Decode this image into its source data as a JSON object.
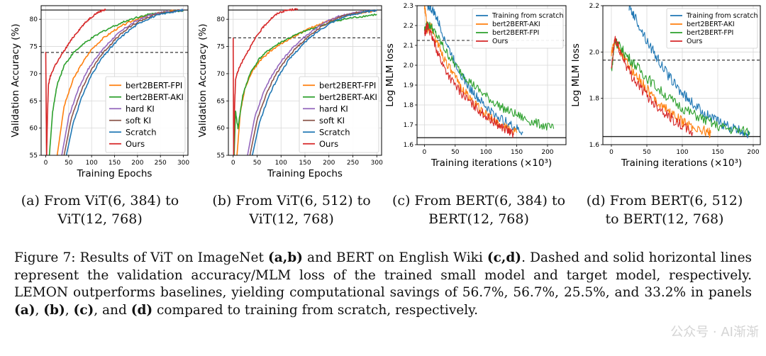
{
  "chart_data": [
    {
      "type": "line",
      "ylabel": "Validation Accuracy (%)",
      "xlabel": "Training Epochs",
      "xlim": [
        -10,
        310
      ],
      "ylim": [
        55,
        82.5
      ],
      "xticks": [
        0,
        50,
        100,
        150,
        200,
        250,
        300
      ],
      "yticks": [
        55,
        60,
        65,
        70,
        75,
        80
      ],
      "hlines": {
        "solid": 81.7,
        "dashed": 73.9
      },
      "legend_position": "lower-right",
      "series": [
        {
          "name": "bert2BERT-FPI",
          "color": "#ff7f0e",
          "x": [
            25,
            40,
            60,
            80,
            100,
            125,
            150,
            175,
            200,
            225,
            250,
            275,
            300
          ],
          "y": [
            55,
            64,
            69,
            72,
            74.5,
            76.5,
            78,
            79.2,
            80.1,
            80.8,
            81.2,
            81.5,
            81.7
          ]
        },
        {
          "name": "bert2BERT-AKI",
          "color": "#2ca02c",
          "x": [
            8,
            15,
            25,
            40,
            60,
            80,
            100,
            125,
            150,
            175,
            200,
            225,
            250,
            275,
            300
          ],
          "y": [
            55,
            63,
            68,
            71.5,
            73.8,
            75.3,
            76.5,
            77.8,
            78.8,
            79.7,
            80.4,
            80.9,
            81.2,
            81.4,
            81.6
          ]
        },
        {
          "name": "hard KI",
          "color": "#9467bd",
          "x": [
            35,
            50,
            70,
            90,
            110,
            130,
            150,
            175,
            200,
            225,
            250,
            275,
            300
          ],
          "y": [
            55,
            62,
            67,
            70.5,
            73,
            75,
            76.8,
            78.5,
            79.8,
            80.7,
            81.2,
            81.5,
            81.7
          ]
        },
        {
          "name": "soft KI",
          "color": "#8c564b",
          "x": [
            40,
            55,
            75,
            95,
            115,
            135,
            155,
            180,
            205,
            230,
            255,
            280,
            300
          ],
          "y": [
            55,
            61.5,
            66.5,
            70,
            72.8,
            74.8,
            76.6,
            78.4,
            79.7,
            80.6,
            81.2,
            81.5,
            81.7
          ]
        },
        {
          "name": "Scratch",
          "color": "#1f77b4",
          "x": [
            45,
            60,
            80,
            100,
            120,
            140,
            160,
            185,
            210,
            235,
            260,
            285,
            300
          ],
          "y": [
            55,
            61,
            66,
            69.8,
            72.6,
            74.6,
            76.4,
            78.2,
            79.6,
            80.5,
            81.1,
            81.5,
            81.7
          ]
        },
        {
          "name": "Ours",
          "color": "#d62728",
          "x": [
            0,
            2,
            4,
            6,
            10,
            20,
            35,
            50,
            65,
            80,
            95,
            110,
            125,
            130
          ],
          "y": [
            74,
            55,
            63,
            68,
            69.5,
            71.5,
            73.5,
            75.5,
            77.3,
            78.8,
            80.1,
            81.1,
            81.7,
            81.7
          ]
        }
      ]
    },
    {
      "type": "line",
      "ylabel": "Validation Accuracy (%)",
      "xlabel": "Training Epochs",
      "xlim": [
        -10,
        310
      ],
      "ylim": [
        55,
        82.5
      ],
      "xticks": [
        0,
        50,
        100,
        150,
        200,
        250,
        300
      ],
      "yticks": [
        55,
        60,
        65,
        70,
        75,
        80
      ],
      "hlines": {
        "solid": 81.7,
        "dashed": 76.6
      },
      "legend_position": "lower-right",
      "series": [
        {
          "name": "bert2BERT-FPI",
          "color": "#ff7f0e",
          "x": [
            8,
            15,
            25,
            40,
            60,
            80,
            100,
            125,
            150,
            175,
            200,
            225,
            250,
            275,
            300
          ],
          "y": [
            55,
            63,
            67.5,
            70.5,
            72.8,
            74.3,
            75.5,
            76.8,
            77.9,
            78.9,
            79.8,
            80.5,
            81,
            81.3,
            81.5
          ]
        },
        {
          "name": "bert2BERT-AKI",
          "color": "#2ca02c",
          "x": [
            2,
            5,
            10,
            20,
            35,
            55,
            75,
            100,
            125,
            150,
            175,
            200,
            225,
            250,
            275,
            300
          ],
          "y": [
            55,
            63,
            60,
            66,
            70,
            72.8,
            74.4,
            75.8,
            76.9,
            77.8,
            78.6,
            79.3,
            79.9,
            80.3,
            80.6,
            80.9
          ]
        },
        {
          "name": "hard KI",
          "color": "#9467bd",
          "x": [
            30,
            45,
            65,
            85,
            105,
            125,
            145,
            170,
            195,
            220,
            245,
            270,
            300
          ],
          "y": [
            55,
            62,
            67,
            70.3,
            72.8,
            74.8,
            76.5,
            78.2,
            79.6,
            80.5,
            81.1,
            81.4,
            81.6
          ]
        },
        {
          "name": "soft KI",
          "color": "#8c564b",
          "x": [
            35,
            50,
            70,
            90,
            110,
            130,
            150,
            175,
            200,
            225,
            250,
            275,
            300
          ],
          "y": [
            55,
            61.5,
            66.5,
            70,
            72.6,
            74.6,
            76.3,
            78.1,
            79.5,
            80.5,
            81.1,
            81.4,
            81.6
          ]
        },
        {
          "name": "Scratch",
          "color": "#1f77b4",
          "x": [
            40,
            55,
            75,
            95,
            115,
            135,
            155,
            180,
            205,
            230,
            255,
            280,
            300
          ],
          "y": [
            55,
            61,
            66,
            69.6,
            72.4,
            74.4,
            76.2,
            78,
            79.4,
            80.4,
            81,
            81.4,
            81.6
          ]
        },
        {
          "name": "Ours",
          "color": "#d62728",
          "x": [
            0,
            1,
            3,
            5,
            10,
            20,
            35,
            50,
            65,
            80,
            95,
            110,
            125,
            135
          ],
          "y": [
            76.6,
            55,
            64,
            69,
            70.5,
            72.5,
            74.8,
            77,
            78.8,
            80.2,
            81.2,
            81.6,
            81.8,
            81.8
          ]
        }
      ]
    },
    {
      "type": "line",
      "ylabel": "Log MLM loss",
      "xlabel": "Training iterations (×10³)",
      "xlim": [
        -12,
        230
      ],
      "ylim": [
        1.6,
        2.3
      ],
      "xticks": [
        0,
        50,
        100,
        150,
        200
      ],
      "yticks": [
        1.6,
        1.7,
        1.8,
        1.9,
        2.0,
        2.1,
        2.2,
        2.3
      ],
      "hlines": {
        "solid": 1.635,
        "dashed": 2.125
      },
      "legend_position": "upper-right",
      "series": [
        {
          "name": "Training from scratch",
          "color": "#1f77b4",
          "x": [
            5,
            15,
            25,
            40,
            55,
            70,
            85,
            100,
            115,
            130,
            145,
            160
          ],
          "y": [
            2.3,
            2.27,
            2.2,
            2.08,
            1.98,
            1.9,
            1.84,
            1.79,
            1.75,
            1.72,
            1.69,
            1.66
          ]
        },
        {
          "name": "bert2BERT-AKI",
          "color": "#ff7f0e",
          "x": [
            0,
            5,
            10,
            20,
            30,
            45,
            60,
            75,
            90,
            105,
            120,
            135,
            150
          ],
          "y": [
            2.3,
            2.18,
            2.2,
            2.12,
            2.05,
            1.96,
            1.89,
            1.83,
            1.78,
            1.74,
            1.71,
            1.68,
            1.66
          ]
        },
        {
          "name": "bert2BERT-FPI",
          "color": "#2ca02c",
          "x": [
            0,
            5,
            10,
            20,
            35,
            50,
            70,
            90,
            110,
            130,
            150,
            170,
            190,
            210
          ],
          "y": [
            2.18,
            2.2,
            2.2,
            2.15,
            2.07,
            2.0,
            1.93,
            1.87,
            1.82,
            1.78,
            1.75,
            1.72,
            1.7,
            1.68
          ]
        },
        {
          "name": "Ours",
          "color": "#d62728",
          "x": [
            0,
            5,
            10,
            20,
            30,
            45,
            60,
            75,
            90,
            105,
            120,
            135,
            145
          ],
          "y": [
            2.15,
            2.2,
            2.16,
            2.08,
            2.0,
            1.92,
            1.86,
            1.81,
            1.77,
            1.73,
            1.7,
            1.67,
            1.65
          ]
        }
      ]
    },
    {
      "type": "line",
      "ylabel": "Log MLM loss",
      "xlabel": "Training iterations (×10³)",
      "xlim": [
        -12,
        210
      ],
      "ylim": [
        1.6,
        2.2
      ],
      "xticks": [
        0,
        50,
        100,
        150,
        200
      ],
      "yticks": [
        1.6,
        1.8,
        2.0,
        2.2
      ],
      "hlines": {
        "solid": 1.635,
        "dashed": 1.965
      },
      "legend_position": "upper-right",
      "series": [
        {
          "name": "Training from scratch",
          "color": "#1f77b4",
          "x": [
            25,
            35,
            50,
            65,
            80,
            95,
            110,
            125,
            140,
            155,
            170,
            185,
            195
          ],
          "y": [
            2.2,
            2.14,
            2.05,
            1.97,
            1.9,
            1.84,
            1.79,
            1.75,
            1.72,
            1.69,
            1.67,
            1.655,
            1.65
          ]
        },
        {
          "name": "bert2BERT-AKI",
          "color": "#ff7f0e",
          "x": [
            0,
            5,
            10,
            20,
            30,
            45,
            60,
            75,
            90,
            105,
            120,
            135,
            140
          ],
          "y": [
            1.99,
            2.05,
            2.02,
            1.96,
            1.92,
            1.86,
            1.8,
            1.76,
            1.72,
            1.69,
            1.67,
            1.655,
            1.65
          ]
        },
        {
          "name": "bert2BERT-FPI",
          "color": "#2ca02c",
          "x": [
            0,
            5,
            10,
            20,
            35,
            50,
            70,
            90,
            110,
            130,
            150,
            170,
            195
          ],
          "y": [
            1.92,
            2.05,
            2.03,
            1.99,
            1.94,
            1.89,
            1.83,
            1.78,
            1.74,
            1.71,
            1.68,
            1.665,
            1.655
          ]
        },
        {
          "name": "Ours",
          "color": "#d62728",
          "x": [
            0,
            5,
            10,
            20,
            30,
            45,
            60,
            75,
            90,
            105,
            115
          ],
          "y": [
            1.92,
            2.06,
            2.02,
            1.95,
            1.89,
            1.83,
            1.78,
            1.74,
            1.7,
            1.67,
            1.65
          ]
        }
      ]
    }
  ],
  "panels": [
    {
      "caption_line1": "(a) From ViT(6, 384) to",
      "caption_line2": "ViT(12, 768)"
    },
    {
      "caption_line1": "(b) From ViT(6, 512) to",
      "caption_line2": "ViT(12, 768)"
    },
    {
      "caption_line1": "(c) From BERT(6, 384) to",
      "caption_line2": "BERT(12, 768)"
    },
    {
      "caption_line1": "(d) From BERT(6, 512)",
      "caption_line2": "to BERT(12, 768)"
    }
  ],
  "figure_caption": {
    "label": "Figure 7:",
    "t1": " Results of ViT on ImageNet ",
    "b1": "(a,b)",
    "t2": " and BERT on English Wiki ",
    "b2": "(c,d)",
    "t3": ". Dashed and solid horizontal lines represent the validation accuracy/MLM loss of the trained small model and target model, respectively. LEMON outperforms baselines, yielding computational savings of 56.7%, 56.7%, 25.5%, and 33.2% in panels ",
    "b3": "(a)",
    "t4": ", ",
    "b4": "(b)",
    "t5": ", ",
    "b5": "(c)",
    "t6": ", and ",
    "b6": "(d)",
    "t7": " compared to training from scratch, respectively."
  },
  "watermark": "公众号 · AI渐渐"
}
